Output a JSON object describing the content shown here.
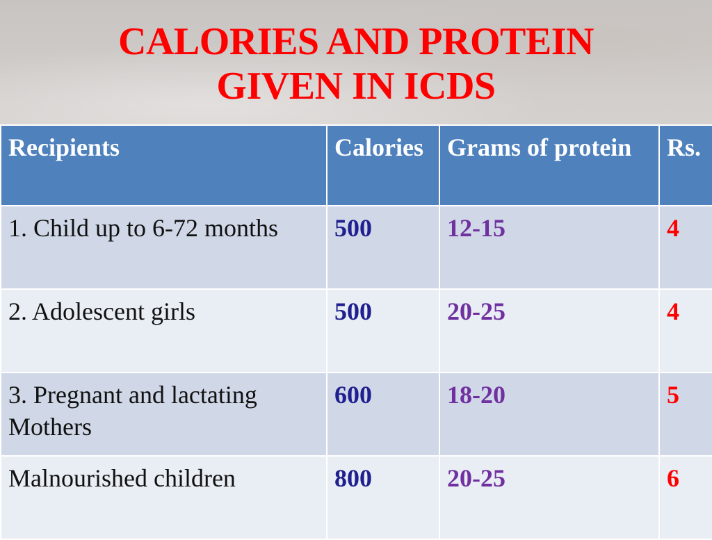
{
  "title": {
    "line1": "CALORIES AND PROTEIN",
    "line2": "GIVEN IN ICDS"
  },
  "table": {
    "headers": [
      "Recipients",
      "Calories",
      "Grams of protein",
      "Rs."
    ],
    "rows": [
      [
        "1. Child up to 6-72 months",
        "500",
        "12-15",
        "4"
      ],
      [
        "2. Adolescent girls",
        "500",
        "20-25",
        "4"
      ],
      [
        "3. Pregnant and lactating Mothers",
        "600",
        "18-20",
        "5"
      ],
      [
        "Malnourished children",
        "800",
        "20-25",
        "6"
      ]
    ]
  },
  "colors": {
    "title": "#ff0000",
    "header_bg": "#4f81bd",
    "row_odd": "#d0d8e8",
    "row_even": "#e9edf4",
    "calories_text": "#1f1f8f",
    "protein_text": "#7030a0",
    "rs_text": "#ff0000"
  }
}
